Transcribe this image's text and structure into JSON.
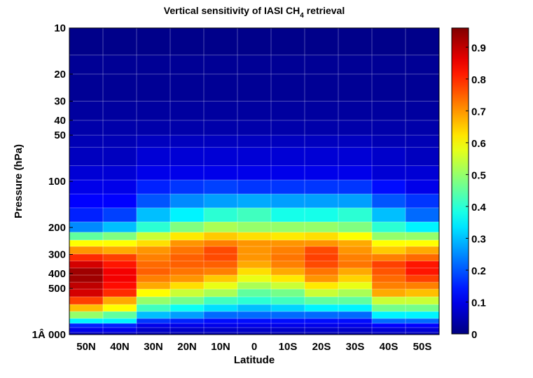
{
  "chart_data": {
    "type": "heatmap",
    "title": "Vertical sensitivity of IASI CH4 retrieval",
    "title_parts": {
      "main": "Vertical sensitivity of IASI CH",
      "subscript": "4",
      "suffix": " retrieval"
    },
    "xlabel": "Latitude",
    "ylabel": "Pressure (hPa)",
    "y_scale": "log",
    "y_reversed": true,
    "ylim": [
      10,
      1000
    ],
    "categories": [
      "50N",
      "40N",
      "30N",
      "20N",
      "10N",
      "0",
      "10S",
      "20S",
      "30S",
      "40S",
      "50S"
    ],
    "y_ticks": [
      10,
      20,
      30,
      40,
      50,
      100,
      200,
      300,
      400,
      500,
      1000
    ],
    "y_tick_labels": [
      "10",
      "20",
      "30",
      "40",
      "50",
      "100",
      "200",
      "300",
      "400",
      "500",
      "1Â 000"
    ],
    "colormap": "jet",
    "clim": [
      0,
      0.96
    ],
    "colorbar_ticks": [
      0,
      0.1,
      0.2,
      0.3,
      0.4,
      0.5,
      0.6,
      0.7,
      0.8,
      0.9
    ],
    "colorbar_tick_labels": [
      "0",
      "0.1",
      "0.2",
      "0.3",
      "0.4",
      "0.5",
      "0.6",
      "0.7",
      "0.8",
      "0.9"
    ],
    "layer_bounds_hPa": [
      10,
      15,
      20,
      30,
      40,
      50,
      60,
      79,
      98,
      121,
      149,
      184,
      215,
      242,
      266,
      298,
      331,
      368,
      409,
      455,
      505,
      567,
      636,
      707,
      785,
      845,
      900,
      968,
      1000
    ],
    "values": [
      [
        0.01,
        0.01,
        0.01,
        0.01,
        0.01,
        0.01,
        0.01,
        0.01,
        0.01,
        0.01,
        0.01
      ],
      [
        0.02,
        0.02,
        0.02,
        0.02,
        0.02,
        0.02,
        0.02,
        0.02,
        0.02,
        0.02,
        0.02
      ],
      [
        0.02,
        0.02,
        0.02,
        0.02,
        0.02,
        0.02,
        0.02,
        0.02,
        0.02,
        0.02,
        0.02
      ],
      [
        0.03,
        0.03,
        0.03,
        0.03,
        0.03,
        0.03,
        0.03,
        0.03,
        0.03,
        0.03,
        0.03
      ],
      [
        0.04,
        0.04,
        0.04,
        0.04,
        0.04,
        0.04,
        0.04,
        0.04,
        0.04,
        0.04,
        0.04
      ],
      [
        0.05,
        0.05,
        0.06,
        0.06,
        0.06,
        0.06,
        0.06,
        0.06,
        0.06,
        0.05,
        0.05
      ],
      [
        0.06,
        0.06,
        0.08,
        0.08,
        0.08,
        0.08,
        0.08,
        0.08,
        0.08,
        0.07,
        0.06
      ],
      [
        0.08,
        0.08,
        0.1,
        0.1,
        0.1,
        0.1,
        0.1,
        0.1,
        0.1,
        0.08,
        0.08
      ],
      [
        0.1,
        0.1,
        0.15,
        0.17,
        0.18,
        0.17,
        0.17,
        0.17,
        0.17,
        0.13,
        0.1
      ],
      [
        0.12,
        0.12,
        0.2,
        0.25,
        0.27,
        0.28,
        0.27,
        0.27,
        0.27,
        0.2,
        0.17
      ],
      [
        0.15,
        0.18,
        0.3,
        0.35,
        0.4,
        0.42,
        0.38,
        0.38,
        0.4,
        0.3,
        0.22
      ],
      [
        0.25,
        0.3,
        0.4,
        0.48,
        0.52,
        0.5,
        0.5,
        0.5,
        0.48,
        0.4,
        0.35
      ],
      [
        0.45,
        0.48,
        0.55,
        0.62,
        0.65,
        0.63,
        0.62,
        0.63,
        0.6,
        0.5,
        0.5
      ],
      [
        0.6,
        0.6,
        0.63,
        0.7,
        0.72,
        0.7,
        0.7,
        0.7,
        0.68,
        0.6,
        0.6
      ],
      [
        0.7,
        0.68,
        0.7,
        0.73,
        0.77,
        0.7,
        0.72,
        0.77,
        0.7,
        0.65,
        0.68
      ],
      [
        0.8,
        0.78,
        0.72,
        0.75,
        0.77,
        0.7,
        0.73,
        0.78,
        0.72,
        0.72,
        0.74
      ],
      [
        0.88,
        0.82,
        0.74,
        0.75,
        0.75,
        0.68,
        0.72,
        0.77,
        0.73,
        0.78,
        0.82
      ],
      [
        0.93,
        0.85,
        0.75,
        0.73,
        0.72,
        0.63,
        0.68,
        0.73,
        0.68,
        0.76,
        0.82
      ],
      [
        0.93,
        0.85,
        0.72,
        0.7,
        0.65,
        0.58,
        0.62,
        0.7,
        0.64,
        0.74,
        0.78
      ],
      [
        0.9,
        0.83,
        0.68,
        0.63,
        0.58,
        0.52,
        0.55,
        0.62,
        0.58,
        0.72,
        0.72
      ],
      [
        0.88,
        0.8,
        0.6,
        0.55,
        0.52,
        0.45,
        0.47,
        0.55,
        0.52,
        0.68,
        0.66
      ],
      [
        0.78,
        0.68,
        0.5,
        0.47,
        0.42,
        0.4,
        0.42,
        0.45,
        0.45,
        0.55,
        0.55
      ],
      [
        0.66,
        0.6,
        0.42,
        0.37,
        0.33,
        0.3,
        0.32,
        0.35,
        0.35,
        0.47,
        0.47
      ],
      [
        0.5,
        0.45,
        0.3,
        0.27,
        0.22,
        0.22,
        0.22,
        0.22,
        0.22,
        0.35,
        0.35
      ],
      [
        0.35,
        0.35,
        0.17,
        0.15,
        0.13,
        0.13,
        0.13,
        0.13,
        0.13,
        0.22,
        0.22
      ],
      [
        0.15,
        0.15,
        0.1,
        0.1,
        0.1,
        0.1,
        0.1,
        0.1,
        0.1,
        0.12,
        0.12
      ],
      [
        0.1,
        0.1,
        0.07,
        0.07,
        0.07,
        0.07,
        0.07,
        0.07,
        0.07,
        0.08,
        0.08
      ],
      [
        0.05,
        0.05,
        0.04,
        0.04,
        0.04,
        0.04,
        0.04,
        0.04,
        0.04,
        0.05,
        0.05
      ]
    ]
  }
}
